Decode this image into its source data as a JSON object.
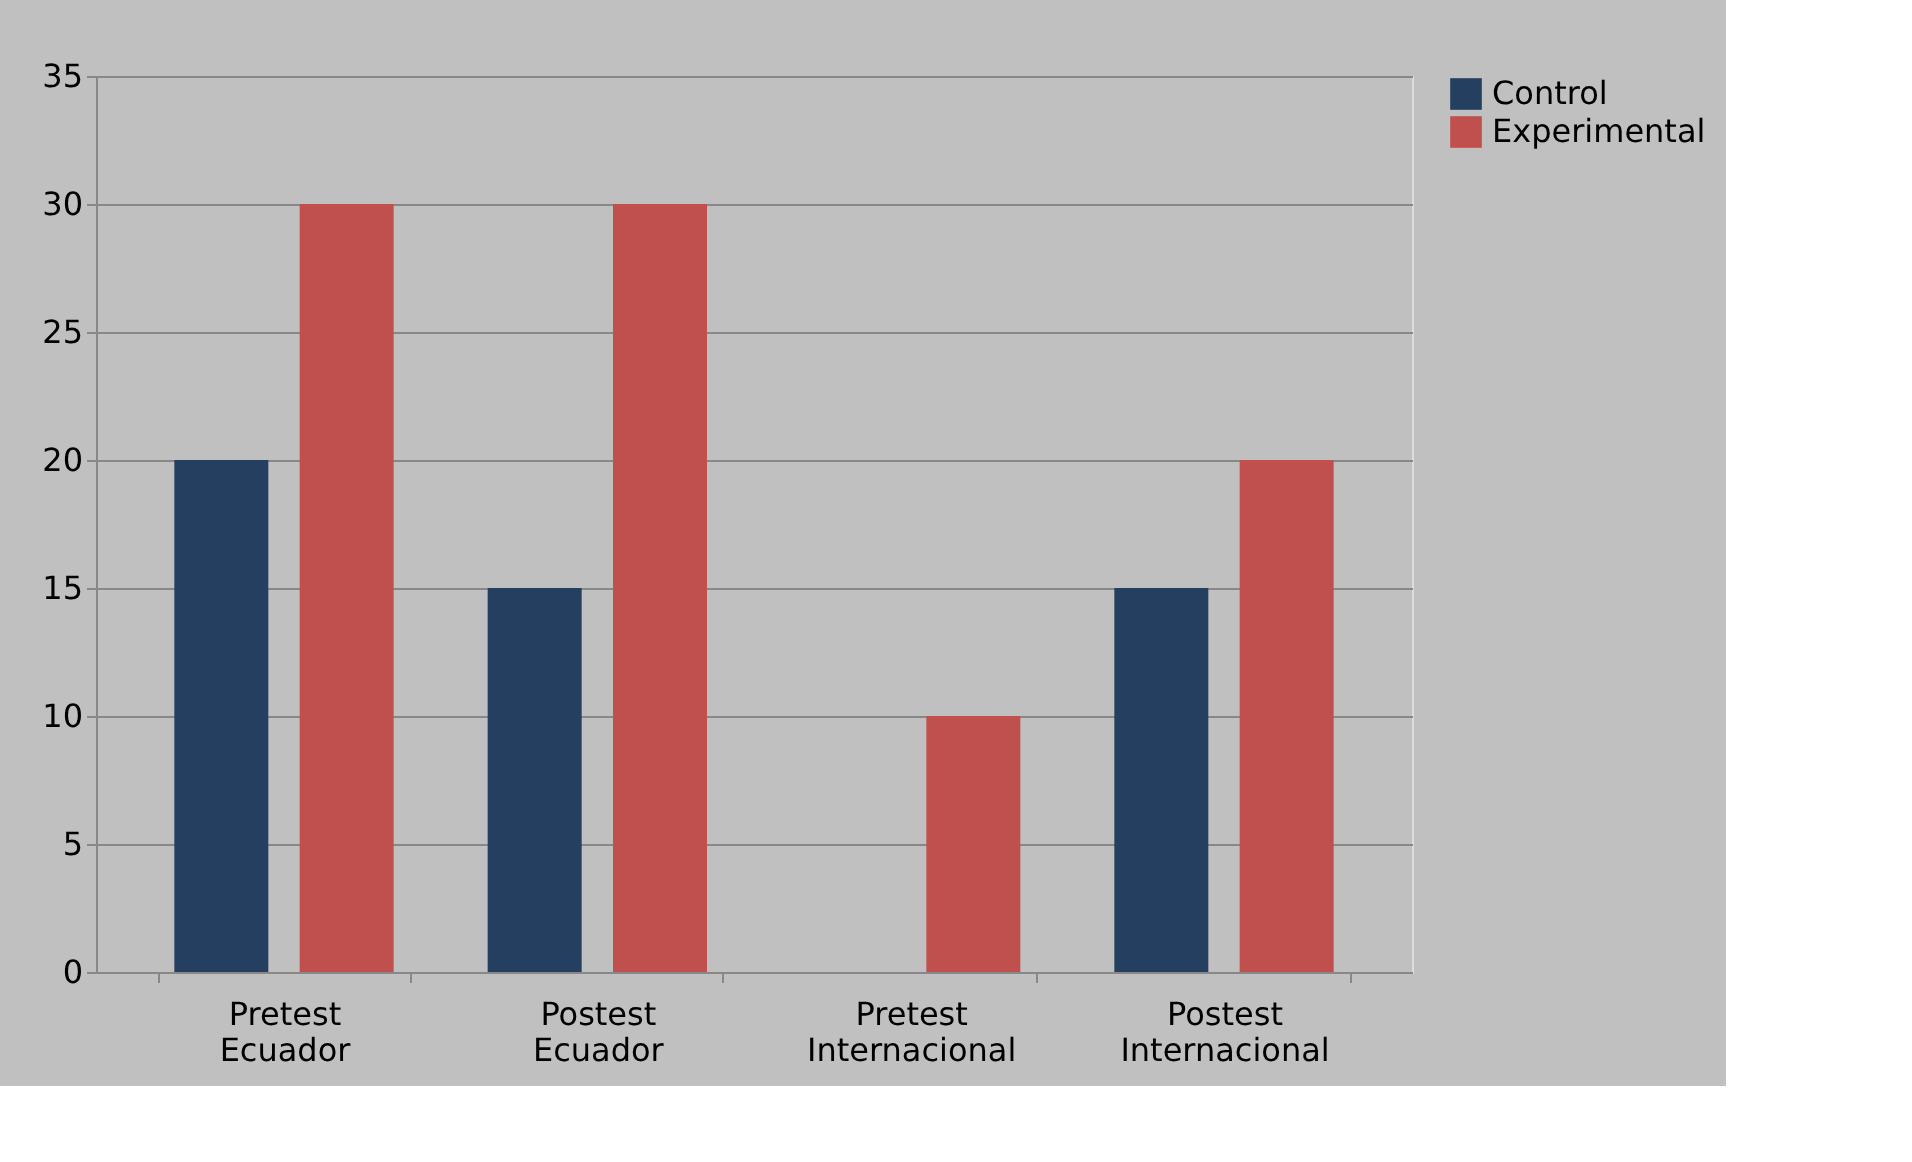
{
  "chart_data": {
    "type": "bar",
    "categories": [
      "Pretest Ecuador",
      "Postest Ecuador",
      "Pretest Internacional",
      "Postest Internacional"
    ],
    "series": [
      {
        "name": "Control",
        "color": "#243f60",
        "values": [
          20,
          15,
          0,
          15
        ]
      },
      {
        "name": "Experimental",
        "color": "#c0504d",
        "values": [
          30,
          30,
          10,
          20
        ]
      }
    ],
    "ylim": [
      0,
      35
    ],
    "yticks": [
      0,
      5,
      10,
      15,
      20,
      25,
      30,
      35
    ],
    "grid": "y",
    "legend": "right"
  }
}
